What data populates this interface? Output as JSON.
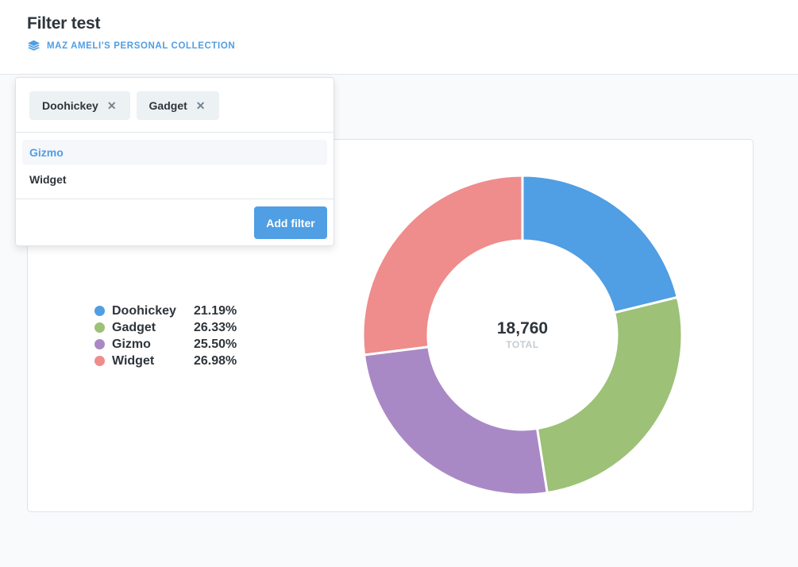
{
  "header": {
    "title": "Filter test",
    "collection_icon": "collection-stack-icon",
    "collection_label": "MAZ AMELI'S PERSONAL COLLECTION"
  },
  "filter_popover": {
    "selected_chips": [
      {
        "label": "Doohickey",
        "remove_icon": "close-icon"
      },
      {
        "label": "Gadget",
        "remove_icon": "close-icon"
      }
    ],
    "options": [
      {
        "label": "Gizmo",
        "highlighted": true
      },
      {
        "label": "Widget",
        "highlighted": false
      }
    ],
    "add_button_label": "Add filter"
  },
  "colors": {
    "brand": "#509ee3",
    "Doohickey": "#509ee3",
    "Gadget": "#9cc177",
    "Gizmo": "#a989c5",
    "Widget": "#ef8c8c"
  },
  "chart_data": {
    "type": "pie",
    "donut": true,
    "categories": [
      "Doohickey",
      "Gadget",
      "Gizmo",
      "Widget"
    ],
    "percents": [
      "21.19%",
      "26.33%",
      "25.50%",
      "26.98%"
    ],
    "values": [
      21.19,
      26.33,
      25.5,
      26.98
    ],
    "total_value": "18,760",
    "total_label": "TOTAL",
    "legend_position": "left"
  }
}
